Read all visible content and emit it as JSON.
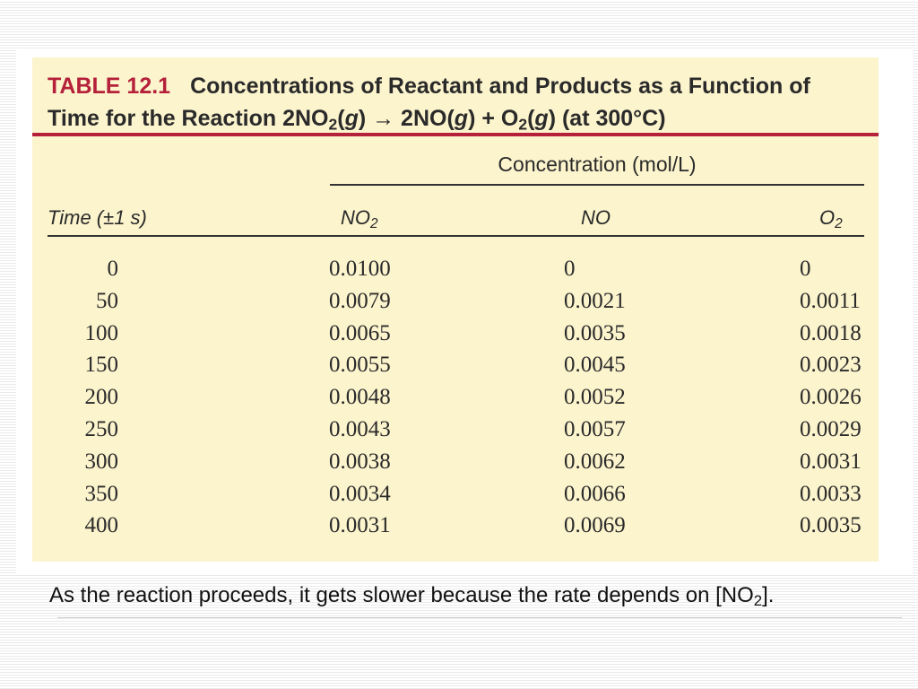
{
  "table": {
    "label": "TABLE 12.1",
    "title_line1": "Concentrations of Reactant and Products as a Function of",
    "title_line2": {
      "t1": "Time for the Reaction 2NO",
      "t2": "2",
      "t3": "(",
      "t4": "g",
      "t5": ") → 2NO(",
      "t6": "g",
      "t7": ") + O",
      "t8": "2",
      "t9": "(",
      "t10": "g",
      "t11": ") (at 300°C)"
    },
    "group_header": "Concentration (mol/L)",
    "columns": {
      "time": "Time (±1 s)",
      "no2_main": "NO",
      "no2_sub": "2",
      "no": "NO",
      "o2_main": "O",
      "o2_sub": "2"
    },
    "rows": [
      {
        "time": "0",
        "no2": "0.0100",
        "no": "0",
        "o2": "0"
      },
      {
        "time": "50",
        "no2": "0.0079",
        "no": "0.0021",
        "o2": "0.0011"
      },
      {
        "time": "100",
        "no2": "0.0065",
        "no": "0.0035",
        "o2": "0.0018"
      },
      {
        "time": "150",
        "no2": "0.0055",
        "no": "0.0045",
        "o2": "0.0023"
      },
      {
        "time": "200",
        "no2": "0.0048",
        "no": "0.0052",
        "o2": "0.0026"
      },
      {
        "time": "250",
        "no2": "0.0043",
        "no": "0.0057",
        "o2": "0.0029"
      },
      {
        "time": "300",
        "no2": "0.0038",
        "no": "0.0062",
        "o2": "0.0031"
      },
      {
        "time": "350",
        "no2": "0.0034",
        "no": "0.0066",
        "o2": "0.0033"
      },
      {
        "time": "400",
        "no2": "0.0031",
        "no": "0.0069",
        "o2": "0.0035"
      }
    ]
  },
  "caption": {
    "main": "As the reaction proceeds, it gets slower because the rate depends on [NO",
    "sub": "2",
    "end": "]."
  },
  "colors": {
    "accent": "#b5203a",
    "table_background": "#fcf4cd",
    "text": "#2a2a2a"
  }
}
